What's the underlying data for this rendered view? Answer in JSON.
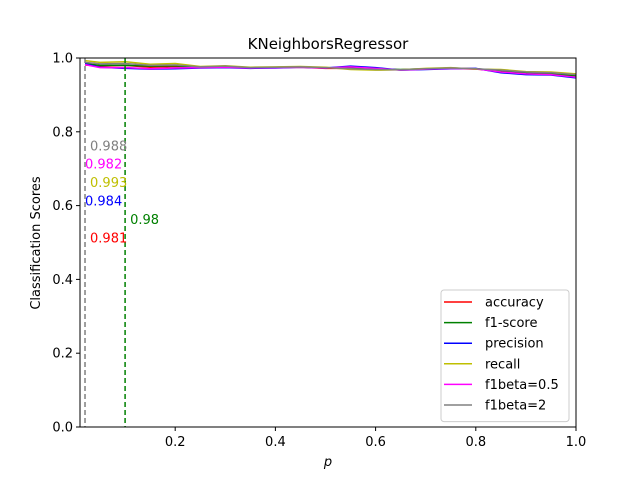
{
  "chart_data": {
    "type": "line",
    "title": "KNeighborsRegressor",
    "xlabel": "p",
    "ylabel": "Classification Scores",
    "xlim": [
      0.01,
      1.0
    ],
    "ylim": [
      0.0,
      1.0
    ],
    "xticks": [
      0.2,
      0.4,
      0.6,
      0.8,
      1.0
    ],
    "xtick_labels": [
      "0.2",
      "0.4",
      "0.6",
      "0.8",
      "1.0"
    ],
    "yticks": [
      0.0,
      0.2,
      0.4,
      0.6,
      0.8,
      1.0
    ],
    "ytick_labels": [
      "0.0",
      "0.2",
      "0.4",
      "0.6",
      "0.8",
      "1.0"
    ],
    "grid": false,
    "legend_position": "lower-right",
    "x": [
      0.02,
      0.05,
      0.1,
      0.15,
      0.2,
      0.25,
      0.3,
      0.35,
      0.4,
      0.45,
      0.5,
      0.55,
      0.6,
      0.65,
      0.7,
      0.75,
      0.8,
      0.85,
      0.9,
      0.95,
      1.0
    ],
    "series": [
      {
        "name": "accuracy",
        "color": "#ff0000",
        "values": [
          0.981,
          0.978,
          0.98,
          0.975,
          0.977,
          0.975,
          0.976,
          0.973,
          0.974,
          0.975,
          0.972,
          0.972,
          0.97,
          0.968,
          0.97,
          0.972,
          0.97,
          0.965,
          0.958,
          0.957,
          0.948
        ]
      },
      {
        "name": "f1-score",
        "color": "#008000",
        "values": [
          0.985,
          0.98,
          0.98,
          0.978,
          0.979,
          0.975,
          0.977,
          0.974,
          0.975,
          0.976,
          0.974,
          0.973,
          0.97,
          0.969,
          0.971,
          0.973,
          0.971,
          0.966,
          0.96,
          0.958,
          0.952
        ]
      },
      {
        "name": "precision",
        "color": "#0000ff",
        "values": [
          0.984,
          0.975,
          0.972,
          0.97,
          0.971,
          0.973,
          0.974,
          0.972,
          0.973,
          0.975,
          0.973,
          0.978,
          0.974,
          0.967,
          0.969,
          0.971,
          0.972,
          0.96,
          0.955,
          0.954,
          0.946
        ]
      },
      {
        "name": "recall",
        "color": "#bfbf00",
        "values": [
          0.993,
          0.988,
          0.99,
          0.983,
          0.985,
          0.977,
          0.979,
          0.975,
          0.976,
          0.977,
          0.975,
          0.969,
          0.967,
          0.968,
          0.972,
          0.974,
          0.97,
          0.969,
          0.963,
          0.962,
          0.957
        ]
      },
      {
        "name": "f1beta=0.5",
        "color": "#ff00ff",
        "values": [
          0.982,
          0.974,
          0.974,
          0.971,
          0.973,
          0.974,
          0.975,
          0.973,
          0.974,
          0.975,
          0.973,
          0.976,
          0.972,
          0.967,
          0.97,
          0.972,
          0.971,
          0.962,
          0.957,
          0.955,
          0.948
        ]
      },
      {
        "name": "f1beta=2",
        "color": "#808080",
        "values": [
          0.988,
          0.984,
          0.985,
          0.98,
          0.981,
          0.976,
          0.978,
          0.974,
          0.975,
          0.976,
          0.974,
          0.971,
          0.969,
          0.968,
          0.971,
          0.973,
          0.971,
          0.967,
          0.962,
          0.96,
          0.955
        ]
      }
    ],
    "vlines": [
      {
        "x": 0.02,
        "color": "#808080"
      },
      {
        "x": 0.1,
        "color": "#008000"
      }
    ],
    "annotations": [
      {
        "text": "0.988",
        "x": 0.03,
        "y": 0.75,
        "color": "#808080"
      },
      {
        "text": "0.982",
        "x": 0.02,
        "y": 0.7,
        "color": "#ff00ff"
      },
      {
        "text": "0.993",
        "x": 0.03,
        "y": 0.65,
        "color": "#bfbf00"
      },
      {
        "text": "0.984",
        "x": 0.02,
        "y": 0.6,
        "color": "#0000ff"
      },
      {
        "text": "0.98",
        "x": 0.11,
        "y": 0.55,
        "color": "#008000"
      },
      {
        "text": "0.981",
        "x": 0.03,
        "y": 0.5,
        "color": "#ff0000"
      }
    ]
  }
}
